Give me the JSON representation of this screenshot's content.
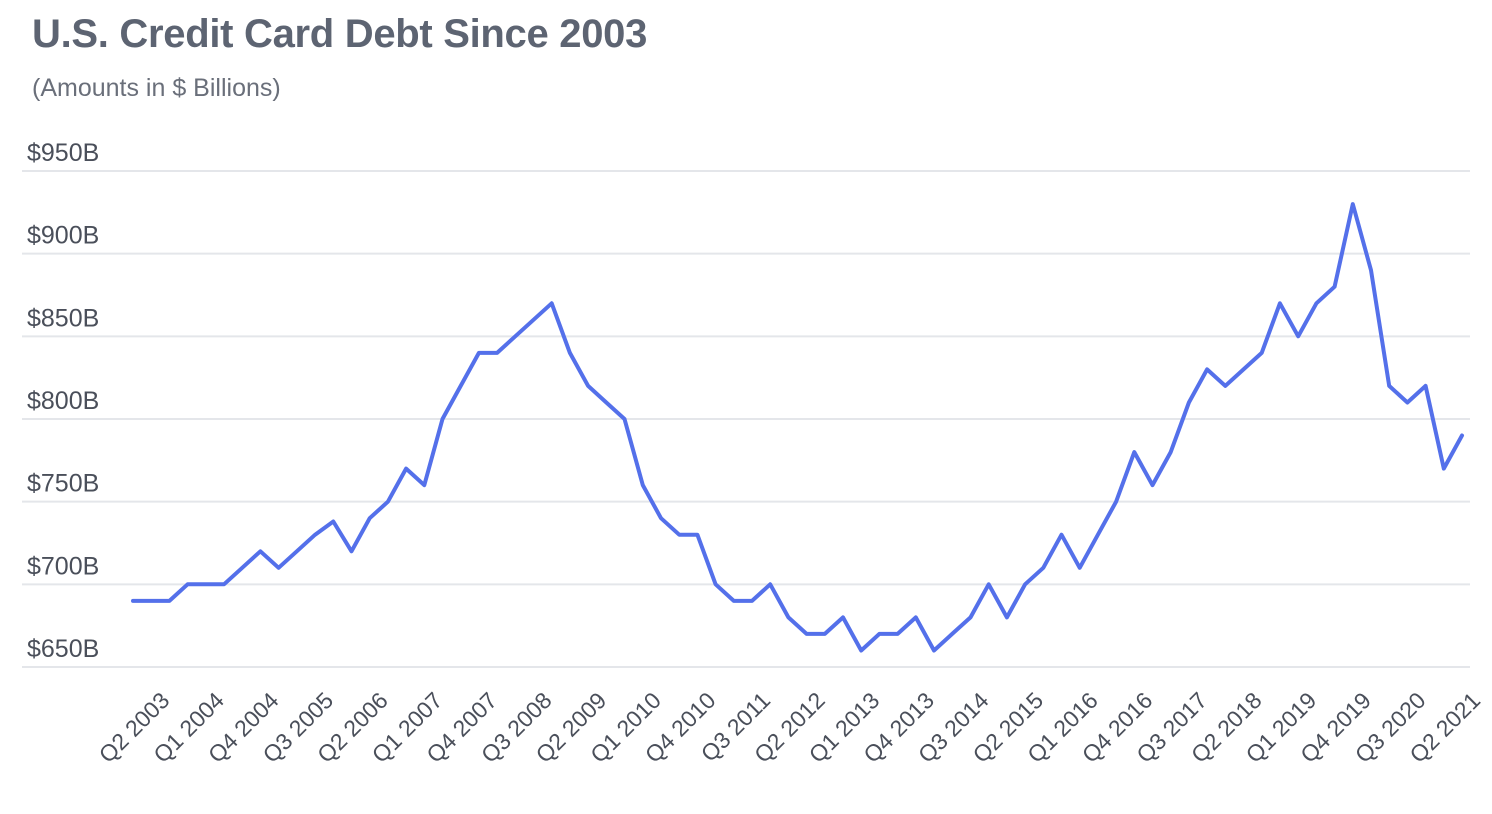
{
  "chart_data": {
    "type": "line",
    "title": "U.S. Credit Card Debt Since 2003",
    "subtitle": "(Amounts in $ Billions)",
    "xlabel": "",
    "ylabel": "",
    "ylim": [
      650,
      950
    ],
    "yticks": [
      950,
      900,
      850,
      800,
      750,
      700,
      650
    ],
    "ytick_labels": [
      "$950B",
      "$900B",
      "$850B",
      "$800B",
      "$750B",
      "$700B",
      "$650B"
    ],
    "grid": true,
    "legend": "none",
    "colors": {
      "series": "#5470ea",
      "grid": "#e4e6ea",
      "title": "#5d6472",
      "text": "#4a4f5a"
    },
    "x": [
      "Q2 2003",
      "Q3 2003",
      "Q4 2003",
      "Q1 2004",
      "Q2 2004",
      "Q3 2004",
      "Q4 2004",
      "Q1 2005",
      "Q2 2005",
      "Q3 2005",
      "Q4 2005",
      "Q1 2006",
      "Q2 2006",
      "Q3 2006",
      "Q4 2006",
      "Q1 2007",
      "Q2 2007",
      "Q3 2007",
      "Q4 2007",
      "Q1 2008",
      "Q2 2008",
      "Q3 2008",
      "Q4 2008",
      "Q1 2009",
      "Q2 2009",
      "Q3 2009",
      "Q4 2009",
      "Q1 2010",
      "Q2 2010",
      "Q3 2010",
      "Q4 2010",
      "Q1 2011",
      "Q2 2011",
      "Q3 2011",
      "Q4 2011",
      "Q1 2012",
      "Q2 2012",
      "Q3 2012",
      "Q4 2012",
      "Q1 2013",
      "Q2 2013",
      "Q3 2013",
      "Q4 2013",
      "Q1 2014",
      "Q2 2014",
      "Q3 2014",
      "Q4 2014",
      "Q1 2015",
      "Q2 2015",
      "Q3 2015",
      "Q4 2015",
      "Q1 2016",
      "Q2 2016",
      "Q3 2016",
      "Q4 2016",
      "Q1 2017",
      "Q2 2017",
      "Q3 2017",
      "Q4 2017",
      "Q1 2018",
      "Q2 2018",
      "Q3 2018",
      "Q4 2018",
      "Q1 2019",
      "Q2 2019",
      "Q3 2019",
      "Q4 2019",
      "Q1 2020",
      "Q2 2020",
      "Q3 2020",
      "Q4 2020",
      "Q1 2021",
      "Q2 2021",
      "Q3 2021"
    ],
    "xtick_labels": [
      "Q2 2003",
      "Q1 2004",
      "Q4 2004",
      "Q3 2005",
      "Q2 2006",
      "Q1 2007",
      "Q4 2007",
      "Q3 2008",
      "Q2 2009",
      "Q1 2010",
      "Q4 2010",
      "Q3 2011",
      "Q2 2012",
      "Q1 2013",
      "Q4 2013",
      "Q3 2014",
      "Q2 2015",
      "Q1 2016",
      "Q4 2016",
      "Q3 2017",
      "Q2 2018",
      "Q1 2019",
      "Q4 2019",
      "Q3 2020",
      "Q2 2021"
    ],
    "series": [
      {
        "values": [
          690,
          690,
          690,
          700,
          700,
          700,
          710,
          720,
          710,
          720,
          730,
          738,
          720,
          740,
          750,
          770,
          760,
          800,
          820,
          840,
          840,
          850,
          860,
          870,
          840,
          820,
          810,
          800,
          760,
          740,
          730,
          730,
          700,
          690,
          690,
          700,
          680,
          670,
          670,
          680,
          660,
          670,
          670,
          680,
          660,
          670,
          680,
          700,
          680,
          700,
          710,
          730,
          710,
          730,
          750,
          780,
          760,
          780,
          810,
          830,
          820,
          830,
          840,
          870,
          850,
          870,
          880,
          930,
          890,
          820,
          810,
          820,
          770,
          790
        ]
      }
    ]
  }
}
